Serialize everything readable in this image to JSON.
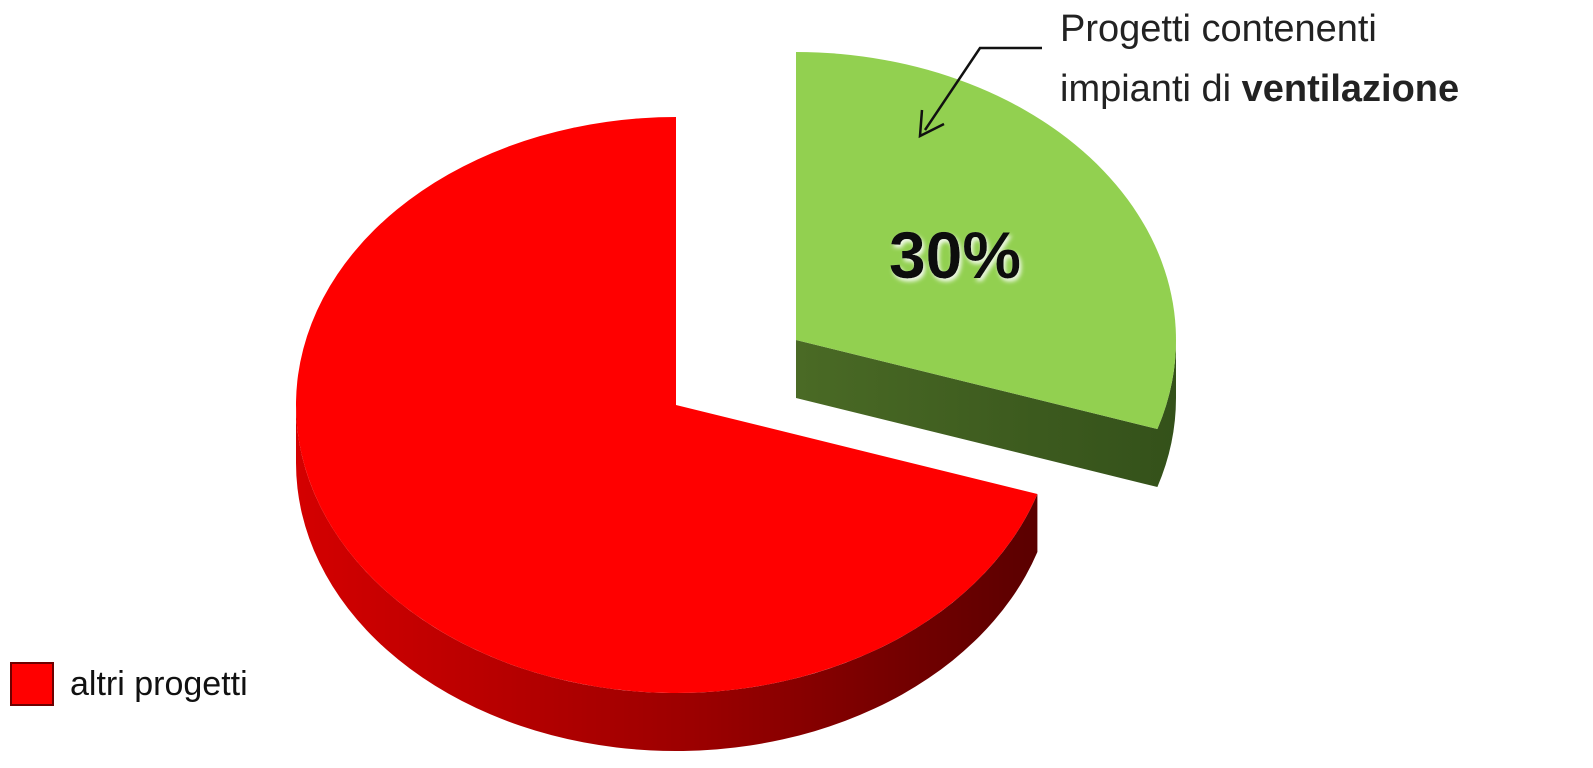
{
  "chart_data": {
    "type": "pie",
    "style": "3d-exploded",
    "slices": [
      {
        "label": "Progetti contenenti impianti di ventilazione",
        "value": 30,
        "value_label": "30%",
        "color": "#92d050",
        "exploded": true
      },
      {
        "label": "altri progetti",
        "value": 70,
        "value_label": "",
        "color": "#ff0000",
        "exploded": false
      }
    ],
    "annotation": {
      "line1": "Progetti contenenti",
      "line2_prefix": "impianti di ",
      "line2_bold": "ventilazione"
    },
    "legend": {
      "placement": "bottom-left",
      "entries": [
        {
          "label": "altri progetti",
          "color": "#ff0000"
        }
      ]
    }
  }
}
